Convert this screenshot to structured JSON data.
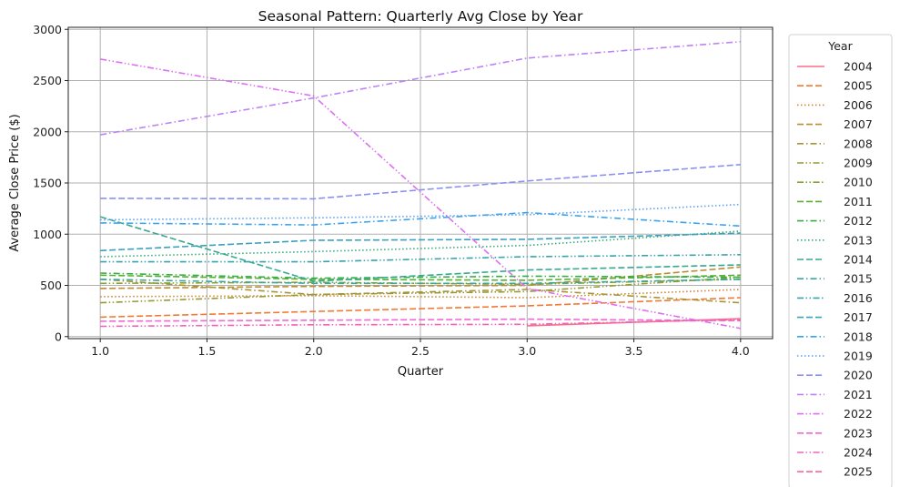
{
  "chart_data": {
    "type": "line",
    "title": "Seasonal Pattern: Quarterly Avg Close by Year",
    "xlabel": "Quarter",
    "ylabel": "Average Close Price ($)",
    "xlim": [
      0.85,
      4.15
    ],
    "ylim": [
      -20,
      3020
    ],
    "x_ticks": [
      1.0,
      1.5,
      2.0,
      2.5,
      3.0,
      3.5,
      4.0
    ],
    "x_tick_labels": [
      "1.0",
      "1.5",
      "2.0",
      "2.5",
      "3.0",
      "3.5",
      "4.0"
    ],
    "y_ticks": [
      0,
      500,
      1000,
      1500,
      2000,
      2500,
      3000
    ],
    "y_tick_labels": [
      "0",
      "500",
      "1000",
      "1500",
      "2000",
      "2500",
      "3000"
    ],
    "grid": true,
    "legend": {
      "title": "Year",
      "placement": "outside-right"
    },
    "series": [
      {
        "name": "2004",
        "color": "#f77189",
        "dash": "solid",
        "x": [
          3,
          4
        ],
        "y": [
          105,
          175
        ]
      },
      {
        "name": "2005",
        "color": "#f37932",
        "dash": "dashed",
        "x": [
          1,
          2,
          3,
          4
        ],
        "y": [
          190,
          245,
          300,
          380
        ]
      },
      {
        "name": "2006",
        "color": "#cf8532",
        "dash": "dotted",
        "x": [
          1,
          2,
          3,
          4
        ],
        "y": [
          390,
          400,
          380,
          460
        ]
      },
      {
        "name": "2007",
        "color": "#bb8d32",
        "dash": "dashed",
        "x": [
          1,
          2,
          3,
          4
        ],
        "y": [
          470,
          490,
          500,
          680
        ]
      },
      {
        "name": "2008",
        "color": "#a69532",
        "dash": "dashdot",
        "x": [
          1,
          2,
          3,
          4
        ],
        "y": [
          560,
          410,
          460,
          330
        ]
      },
      {
        "name": "2009",
        "color": "#969a32",
        "dash": "dashdotdot",
        "x": [
          1,
          2,
          3,
          4
        ],
        "y": [
          330,
          410,
          440,
          580
        ]
      },
      {
        "name": "2010",
        "color": "#86a232",
        "dash": "dashdotdot",
        "x": [
          1,
          2,
          3,
          4
        ],
        "y": [
          520,
          530,
          510,
          560
        ]
      },
      {
        "name": "2011",
        "color": "#58af32",
        "dash": "dashed",
        "x": [
          1,
          2,
          3,
          4
        ],
        "y": [
          600,
          560,
          550,
          600
        ]
      },
      {
        "name": "2012",
        "color": "#33b044",
        "dash": "dashdot",
        "x": [
          1,
          2,
          3,
          4
        ],
        "y": [
          620,
          570,
          590,
          580
        ]
      },
      {
        "name": "2013",
        "color": "#35ac7a",
        "dash": "dotted",
        "x": [
          1,
          2,
          3,
          4
        ],
        "y": [
          780,
          830,
          890,
          1030
        ]
      },
      {
        "name": "2014",
        "color": "#36a98f",
        "dash": "dashed",
        "x": [
          1,
          2,
          3,
          4
        ],
        "y": [
          1170,
          540,
          650,
          700
        ]
      },
      {
        "name": "2015",
        "color": "#37a7a0",
        "dash": "dashdot",
        "x": [
          1,
          2,
          3,
          4
        ],
        "y": [
          560,
          520,
          520,
          560
        ]
      },
      {
        "name": "2016",
        "color": "#38a4ae",
        "dash": "dashdotdot",
        "x": [
          1,
          2,
          3,
          4
        ],
        "y": [
          730,
          730,
          780,
          800
        ]
      },
      {
        "name": "2017",
        "color": "#39a2bc",
        "dash": "dashed",
        "x": [
          1,
          2,
          3,
          4
        ],
        "y": [
          840,
          940,
          950,
          1010
        ]
      },
      {
        "name": "2018",
        "color": "#3ba3ec",
        "dash": "dashdot",
        "x": [
          1,
          2,
          3,
          4
        ],
        "y": [
          1110,
          1090,
          1210,
          1080
        ]
      },
      {
        "name": "2019",
        "color": "#5ea1eb",
        "dash": "dotted",
        "x": [
          1,
          2,
          3,
          4
        ],
        "y": [
          1140,
          1160,
          1190,
          1290
        ]
      },
      {
        "name": "2020",
        "color": "#8a91f2",
        "dash": "dashed",
        "x": [
          1,
          2,
          3,
          4
        ],
        "y": [
          1350,
          1345,
          1520,
          1680
        ]
      },
      {
        "name": "2021",
        "color": "#bb83f4",
        "dash": "dashdot",
        "x": [
          1,
          2,
          3,
          4
        ],
        "y": [
          1970,
          2330,
          2720,
          2880
        ]
      },
      {
        "name": "2022",
        "color": "#dc6ff2",
        "dash": "dashdotdot",
        "x": [
          1,
          2,
          3,
          4
        ],
        "y": [
          2710,
          2350,
          470,
          80
        ]
      },
      {
        "name": "2023",
        "color": "#f168d4",
        "dash": "dashed",
        "x": [
          1,
          2,
          3,
          4
        ],
        "y": [
          150,
          160,
          170,
          155
        ]
      },
      {
        "name": "2024",
        "color": "#f561b6",
        "dash": "dashdotdot",
        "x": [
          1,
          2,
          3,
          4
        ],
        "y": [
          100,
          115,
          120,
          165
        ]
      },
      {
        "name": "2025",
        "color": "#f66b94",
        "dash": "dashed",
        "x": [
          1
        ],
        "y": [
          170
        ]
      }
    ]
  }
}
